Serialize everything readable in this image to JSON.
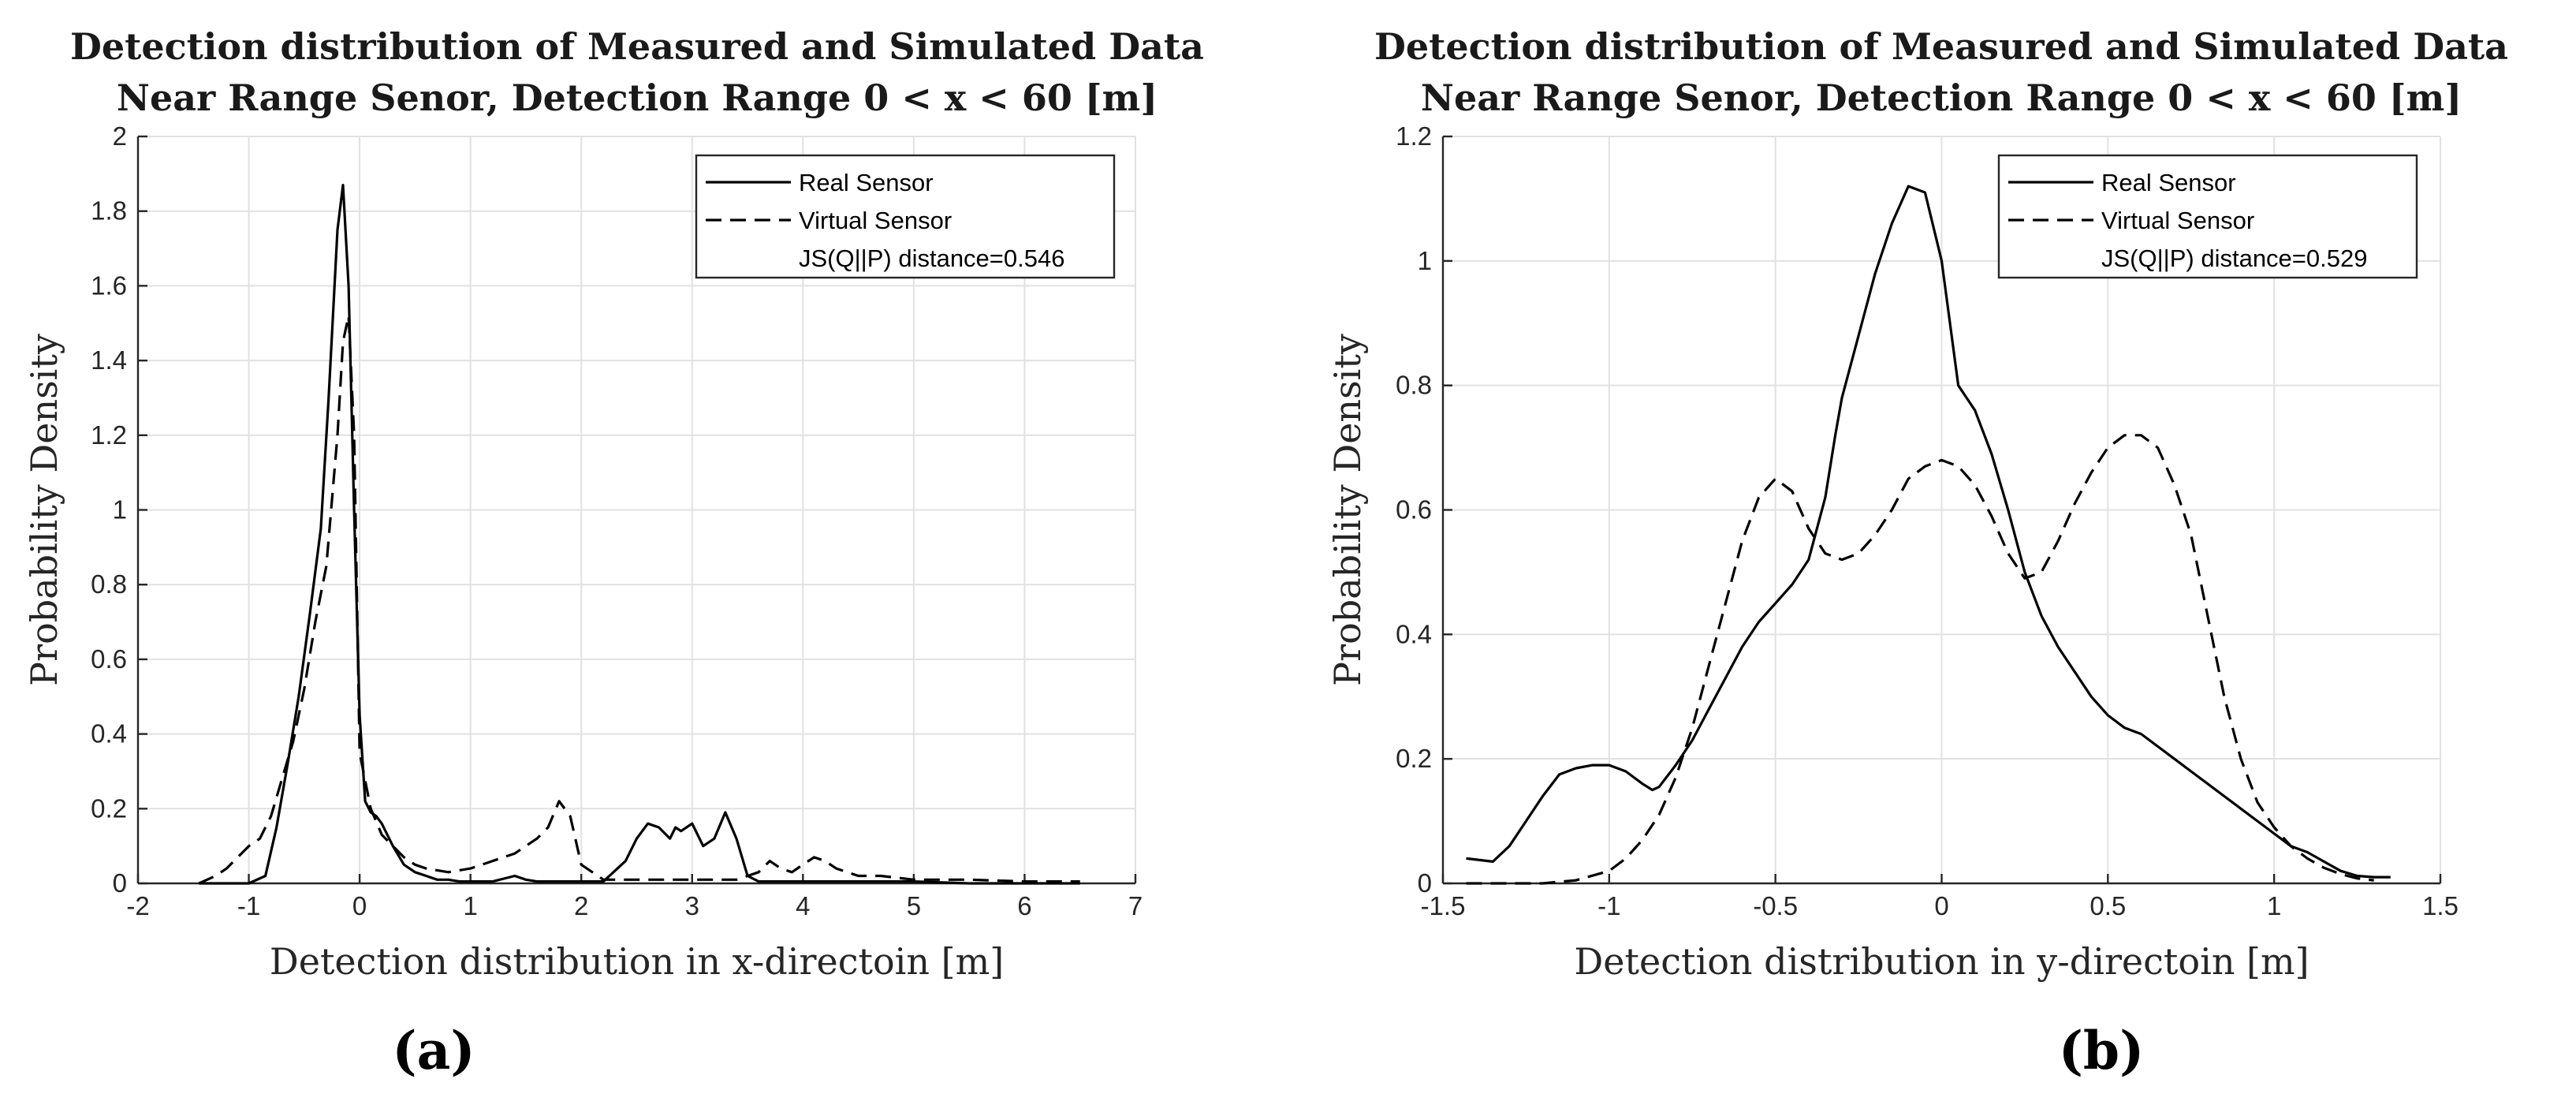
{
  "chart_data": [
    {
      "type": "line",
      "panel_label": "(a)",
      "title_lines": [
        "Detection distribution of Measured and Simulated Data",
        "Near Range Senor, Detection Range 0 < x < 60 [m]"
      ],
      "xlabel": "Detection distribution in x-directoin [m]",
      "ylabel": "Probability Density",
      "xlim": [
        -2,
        7
      ],
      "ylim": [
        0,
        2
      ],
      "xticks": [
        -2,
        -1,
        0,
        1,
        2,
        3,
        4,
        5,
        6,
        7
      ],
      "yticks": [
        0,
        0.2,
        0.4,
        0.6,
        0.8,
        1,
        1.2,
        1.4,
        1.6,
        1.8,
        2
      ],
      "xtick_labels": [
        "-2",
        "-1",
        "0",
        "1",
        "2",
        "3",
        "4",
        "5",
        "6",
        "7"
      ],
      "ytick_labels": [
        "0",
        "0.2",
        "0.4",
        "0.6",
        "0.8",
        "1",
        "1.2",
        "1.4",
        "1.6",
        "1.8",
        "2"
      ],
      "grid": true,
      "legend_position": "top-right",
      "legend_note": "JS(Q||P) distance=0.546",
      "series": [
        {
          "name": "Real Sensor",
          "style": "solid",
          "x": [
            -1.45,
            -1.2,
            -1.0,
            -0.85,
            -0.75,
            -0.65,
            -0.55,
            -0.45,
            -0.35,
            -0.28,
            -0.2,
            -0.15,
            -0.1,
            -0.05,
            0.0,
            0.05,
            0.1,
            0.15,
            0.2,
            0.3,
            0.4,
            0.5,
            0.6,
            0.7,
            0.8,
            0.9,
            1.0,
            1.2,
            1.4,
            1.5,
            1.6,
            1.8,
            2.0,
            2.2,
            2.4,
            2.5,
            2.6,
            2.7,
            2.8,
            2.85,
            2.9,
            3.0,
            3.1,
            3.2,
            3.3,
            3.4,
            3.5,
            3.6,
            3.8,
            4.0,
            4.5,
            5.0,
            5.5,
            6.0,
            6.5
          ],
          "y": [
            0.0,
            0.0,
            0.0,
            0.02,
            0.15,
            0.32,
            0.5,
            0.72,
            0.95,
            1.3,
            1.75,
            1.87,
            1.6,
            1.0,
            0.45,
            0.22,
            0.19,
            0.18,
            0.16,
            0.1,
            0.05,
            0.03,
            0.02,
            0.01,
            0.01,
            0.005,
            0.005,
            0.005,
            0.02,
            0.01,
            0.005,
            0.005,
            0.005,
            0.005,
            0.06,
            0.12,
            0.16,
            0.15,
            0.12,
            0.15,
            0.14,
            0.16,
            0.1,
            0.12,
            0.19,
            0.12,
            0.02,
            0.005,
            0.005,
            0.005,
            0.005,
            0.005,
            0.0,
            0.0,
            0.0
          ]
        },
        {
          "name": "Virtual Sensor",
          "style": "dashed",
          "x": [
            -1.45,
            -1.3,
            -1.2,
            -1.1,
            -1.0,
            -0.9,
            -0.8,
            -0.7,
            -0.6,
            -0.5,
            -0.4,
            -0.3,
            -0.2,
            -0.15,
            -0.1,
            -0.05,
            0.0,
            0.1,
            0.2,
            0.3,
            0.4,
            0.5,
            0.6,
            0.8,
            1.0,
            1.2,
            1.4,
            1.6,
            1.7,
            1.8,
            1.9,
            2.0,
            2.2,
            2.4,
            2.6,
            2.8,
            3.0,
            3.2,
            3.4,
            3.6,
            3.7,
            3.8,
            3.9,
            4.0,
            4.1,
            4.2,
            4.3,
            4.5,
            4.7,
            5.0,
            5.5,
            6.0,
            6.5
          ],
          "y": [
            0.0,
            0.02,
            0.04,
            0.07,
            0.1,
            0.12,
            0.18,
            0.28,
            0.38,
            0.52,
            0.7,
            0.85,
            1.2,
            1.45,
            1.52,
            1.2,
            0.35,
            0.2,
            0.13,
            0.1,
            0.07,
            0.05,
            0.04,
            0.03,
            0.04,
            0.06,
            0.08,
            0.12,
            0.15,
            0.22,
            0.18,
            0.05,
            0.01,
            0.01,
            0.01,
            0.01,
            0.01,
            0.01,
            0.01,
            0.03,
            0.06,
            0.04,
            0.03,
            0.05,
            0.07,
            0.06,
            0.04,
            0.02,
            0.02,
            0.01,
            0.01,
            0.005,
            0.005
          ]
        }
      ]
    },
    {
      "type": "line",
      "panel_label": "(b)",
      "title_lines": [
        "Detection distribution of Measured and Simulated Data",
        "Near Range Senor, Detection Range 0 < x < 60 [m]"
      ],
      "xlabel": "Detection distribution in y-directoin [m]",
      "ylabel": "Probability Density",
      "xlim": [
        -1.5,
        1.5
      ],
      "ylim": [
        0,
        1.2
      ],
      "xticks": [
        -1.5,
        -1,
        -0.5,
        0,
        0.5,
        1,
        1.5
      ],
      "yticks": [
        0,
        0.2,
        0.4,
        0.6,
        0.8,
        1,
        1.2
      ],
      "xtick_labels": [
        "-1.5",
        "-1",
        "-0.5",
        "0",
        "0.5",
        "1",
        "1.5"
      ],
      "ytick_labels": [
        "0",
        "0.2",
        "0.4",
        "0.6",
        "0.8",
        "1",
        "1.2"
      ],
      "grid": true,
      "legend_position": "top-right",
      "legend_note": "JS(Q||P) distance=0.529",
      "series": [
        {
          "name": "Real Sensor",
          "style": "solid",
          "x": [
            -1.43,
            -1.35,
            -1.3,
            -1.25,
            -1.2,
            -1.15,
            -1.1,
            -1.05,
            -1.0,
            -0.95,
            -0.9,
            -0.87,
            -0.85,
            -0.8,
            -0.75,
            -0.7,
            -0.65,
            -0.6,
            -0.55,
            -0.5,
            -0.45,
            -0.4,
            -0.35,
            -0.32,
            -0.3,
            -0.25,
            -0.2,
            -0.15,
            -0.1,
            -0.05,
            0.0,
            0.05,
            0.1,
            0.15,
            0.2,
            0.25,
            0.3,
            0.35,
            0.4,
            0.45,
            0.5,
            0.55,
            0.6,
            0.65,
            0.7,
            0.75,
            0.8,
            0.85,
            0.9,
            0.95,
            1.0,
            1.05,
            1.1,
            1.15,
            1.2,
            1.25,
            1.3,
            1.35
          ],
          "y": [
            0.04,
            0.035,
            0.06,
            0.1,
            0.14,
            0.175,
            0.185,
            0.19,
            0.19,
            0.18,
            0.16,
            0.15,
            0.155,
            0.19,
            0.23,
            0.28,
            0.33,
            0.38,
            0.42,
            0.45,
            0.48,
            0.52,
            0.62,
            0.72,
            0.78,
            0.88,
            0.98,
            1.06,
            1.12,
            1.11,
            1.0,
            0.8,
            0.76,
            0.69,
            0.6,
            0.5,
            0.43,
            0.38,
            0.34,
            0.3,
            0.27,
            0.25,
            0.24,
            0.22,
            0.2,
            0.18,
            0.16,
            0.14,
            0.12,
            0.1,
            0.08,
            0.06,
            0.05,
            0.035,
            0.02,
            0.012,
            0.01,
            0.01
          ]
        },
        {
          "name": "Virtual Sensor",
          "style": "dashed",
          "x": [
            -1.43,
            -1.3,
            -1.2,
            -1.1,
            -1.0,
            -0.95,
            -0.9,
            -0.85,
            -0.8,
            -0.75,
            -0.7,
            -0.65,
            -0.6,
            -0.55,
            -0.5,
            -0.45,
            -0.4,
            -0.35,
            -0.3,
            -0.25,
            -0.2,
            -0.15,
            -0.1,
            -0.05,
            0.0,
            0.05,
            0.1,
            0.15,
            0.2,
            0.25,
            0.3,
            0.35,
            0.4,
            0.45,
            0.5,
            0.55,
            0.6,
            0.65,
            0.7,
            0.75,
            0.8,
            0.85,
            0.9,
            0.95,
            1.0,
            1.05,
            1.1,
            1.15,
            1.2,
            1.25,
            1.3
          ],
          "y": [
            0.0,
            0.0,
            0.0,
            0.005,
            0.02,
            0.04,
            0.07,
            0.11,
            0.17,
            0.25,
            0.35,
            0.45,
            0.55,
            0.62,
            0.65,
            0.63,
            0.57,
            0.53,
            0.52,
            0.53,
            0.56,
            0.6,
            0.65,
            0.67,
            0.68,
            0.67,
            0.64,
            0.59,
            0.53,
            0.49,
            0.5,
            0.55,
            0.61,
            0.66,
            0.7,
            0.72,
            0.72,
            0.7,
            0.64,
            0.56,
            0.43,
            0.3,
            0.2,
            0.13,
            0.09,
            0.06,
            0.04,
            0.025,
            0.015,
            0.008,
            0.005
          ]
        }
      ]
    }
  ]
}
